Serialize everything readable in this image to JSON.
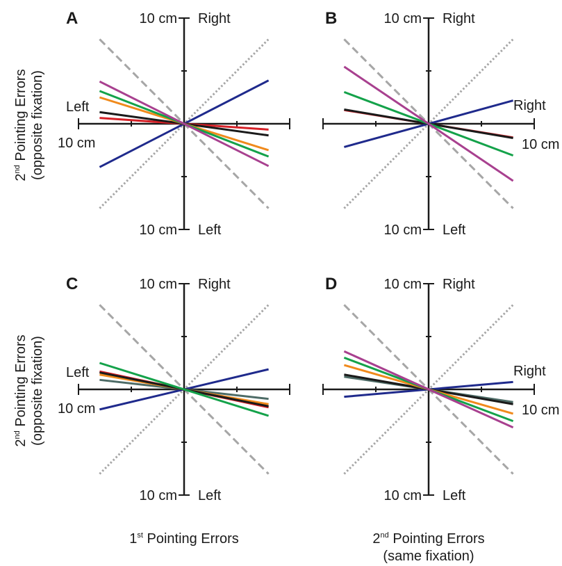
{
  "colors": {
    "axis": "#1a1a1a",
    "reference_dashed": "#a6a6a6",
    "reference_dotted": "#a6a6a6"
  },
  "labels": {
    "left_ylabel_top": {
      "base": "2",
      "sup": "nd",
      "rest": " Pointing Errors",
      "line2": "(opposite fixation)"
    },
    "left_ylabel_bottom": {
      "base": "2",
      "sup": "nd",
      "rest": " Pointing Errors",
      "line2": "(opposite fixation)"
    },
    "xlabel_left": {
      "base": "1",
      "sup": "st",
      "rest": " Pointing Errors"
    },
    "xlabel_right": {
      "base": "2",
      "sup": "nd",
      "rest": " Pointing Errors",
      "line2": "(same fixation)"
    }
  },
  "chart_data": [
    {
      "type": "line",
      "panel": "A",
      "xlim": [
        -10,
        10
      ],
      "ylim": [
        -10,
        10
      ],
      "axis_text": {
        "top_value": "10 cm",
        "top_dir": "Right",
        "bottom_value": "10 cm",
        "bottom_dir": "Left",
        "left_dir": "Left",
        "left_value": "10 cm",
        "right_dir": "",
        "right_value": ""
      },
      "reference_lines": [
        {
          "style": "dashed",
          "slope": -1
        },
        {
          "style": "dotted",
          "slope": 1
        }
      ],
      "series": [
        {
          "color": "#1f2a8c",
          "x": [
            -8,
            8
          ],
          "y": [
            -4.1,
            4.1
          ]
        },
        {
          "color": "#d62027",
          "x": [
            -8,
            8
          ],
          "y": [
            0.55,
            -0.55
          ]
        },
        {
          "color": "#1a1a1a",
          "x": [
            -8,
            8
          ],
          "y": [
            1.1,
            -1.1
          ]
        },
        {
          "color": "#f08a1c",
          "x": [
            -8,
            8
          ],
          "y": [
            2.5,
            -2.5
          ]
        },
        {
          "color": "#14a24a",
          "x": [
            -8,
            8
          ],
          "y": [
            3.1,
            -3.1
          ]
        },
        {
          "color": "#a8408f",
          "x": [
            -8,
            8
          ],
          "y": [
            4.0,
            -4.0
          ]
        }
      ]
    },
    {
      "type": "line",
      "panel": "B",
      "xlim": [
        -10,
        10
      ],
      "ylim": [
        -10,
        10
      ],
      "axis_text": {
        "top_value": "10 cm",
        "top_dir": "Right",
        "bottom_value": "10 cm",
        "bottom_dir": "Left",
        "left_dir": "",
        "left_value": "",
        "right_dir": "Right",
        "right_value": "10 cm"
      },
      "reference_lines": [
        {
          "style": "dashed",
          "slope": -1
        },
        {
          "style": "dotted",
          "slope": 1
        }
      ],
      "series": [
        {
          "color": "#1f2a8c",
          "x": [
            -8,
            8
          ],
          "y": [
            -2.2,
            2.2
          ]
        },
        {
          "color": "#d62027",
          "x": [
            -8,
            8
          ],
          "y": [
            1.3,
            -1.3
          ]
        },
        {
          "color": "#1a1a1a",
          "x": [
            -8,
            8
          ],
          "y": [
            1.35,
            -1.35
          ]
        },
        {
          "color": "#14a24a",
          "x": [
            -8,
            8
          ],
          "y": [
            3.0,
            -3.0
          ]
        },
        {
          "color": "#a8408f",
          "x": [
            -8,
            8
          ],
          "y": [
            5.4,
            -5.4
          ]
        }
      ]
    },
    {
      "type": "line",
      "panel": "C",
      "xlim": [
        -10,
        10
      ],
      "ylim": [
        -10,
        10
      ],
      "axis_text": {
        "top_value": "10 cm",
        "top_dir": "Right",
        "bottom_value": "10 cm",
        "bottom_dir": "Left",
        "left_dir": "Left",
        "left_value": "10 cm",
        "right_dir": "",
        "right_value": ""
      },
      "reference_lines": [
        {
          "style": "dashed",
          "slope": -1
        },
        {
          "style": "dotted",
          "slope": 1
        }
      ],
      "series": [
        {
          "color": "#1f2a8c",
          "x": [
            -8,
            8
          ],
          "y": [
            -1.9,
            1.9
          ]
        },
        {
          "color": "#4d6b66",
          "x": [
            -8,
            8
          ],
          "y": [
            0.9,
            -0.9
          ]
        },
        {
          "color": "#f08a1c",
          "x": [
            -8,
            8
          ],
          "y": [
            1.4,
            -1.4
          ]
        },
        {
          "color": "#d62027",
          "x": [
            -8,
            8
          ],
          "y": [
            1.7,
            -1.7
          ]
        },
        {
          "color": "#1a1a1a",
          "x": [
            -8,
            8
          ],
          "y": [
            1.6,
            -1.6
          ]
        },
        {
          "color": "#14a24a",
          "x": [
            -8,
            8
          ],
          "y": [
            2.5,
            -2.5
          ]
        }
      ]
    },
    {
      "type": "line",
      "panel": "D",
      "xlim": [
        -10,
        10
      ],
      "ylim": [
        -10,
        10
      ],
      "axis_text": {
        "top_value": "10 cm",
        "top_dir": "Right",
        "bottom_value": "10 cm",
        "bottom_dir": "Left",
        "left_dir": "",
        "left_value": "",
        "right_dir": "Right",
        "right_value": "10 cm"
      },
      "reference_lines": [
        {
          "style": "dashed",
          "slope": -1
        },
        {
          "style": "dotted",
          "slope": 1
        }
      ],
      "series": [
        {
          "color": "#1f2a8c",
          "x": [
            -8,
            8
          ],
          "y": [
            -0.7,
            0.7
          ]
        },
        {
          "color": "#4d6b66",
          "x": [
            -8,
            8
          ],
          "y": [
            1.2,
            -1.2
          ]
        },
        {
          "color": "#1a1a1a",
          "x": [
            -8,
            8
          ],
          "y": [
            1.4,
            -1.4
          ]
        },
        {
          "color": "#f08a1c",
          "x": [
            -8,
            8
          ],
          "y": [
            2.3,
            -2.3
          ]
        },
        {
          "color": "#14a24a",
          "x": [
            -8,
            8
          ],
          "y": [
            3.0,
            -3.0
          ]
        },
        {
          "color": "#a8408f",
          "x": [
            -8,
            8
          ],
          "y": [
            3.6,
            -3.6
          ]
        }
      ]
    }
  ]
}
